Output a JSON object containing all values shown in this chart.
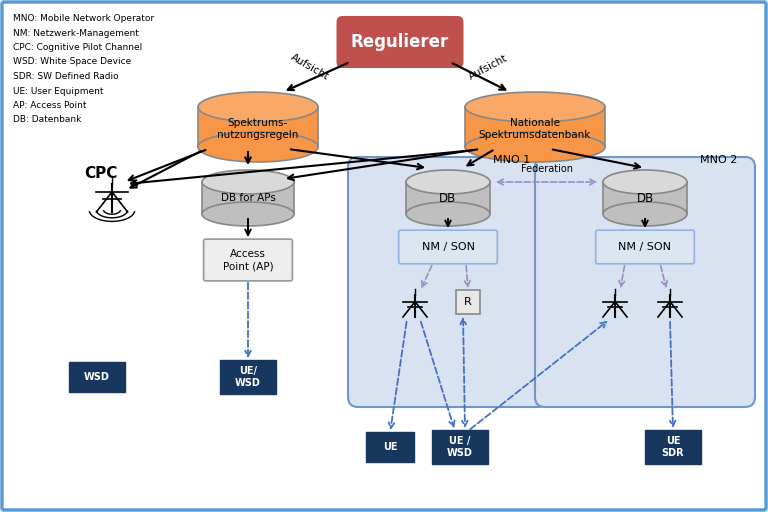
{
  "background": "#ffffff",
  "border_color": "#5b9bd5",
  "legend_text": [
    "MNO: Mobile Network Operator",
    "NM: Netzwerk-Management",
    "CPC: Cognitive Pilot Channel",
    "WSD: White Space Device",
    "SDR: SW Defined Radio",
    "UE: User Equipment",
    "AP: Access Point",
    "DB: Datenbank"
  ],
  "regulierer_color": "#c0504d",
  "db_orange_top": "#f9a868",
  "db_orange_side": "#f79646",
  "db_gray_top": "#d9d9d9",
  "db_gray_side": "#bfbfbf",
  "mno_fill": "#d9e2f0",
  "mno_border": "#7096c8",
  "nmson_fill": "#dce6f1",
  "nmson_border": "#8db4e2",
  "ap_fill": "#eeeeee",
  "ap_border": "#999999",
  "blue_box": "#17375e",
  "arrow_black": "#000000",
  "arrow_blue": "#4472c4",
  "arrow_purple": "#9b8dc8",
  "fed_arrow": "#9b8dc8"
}
